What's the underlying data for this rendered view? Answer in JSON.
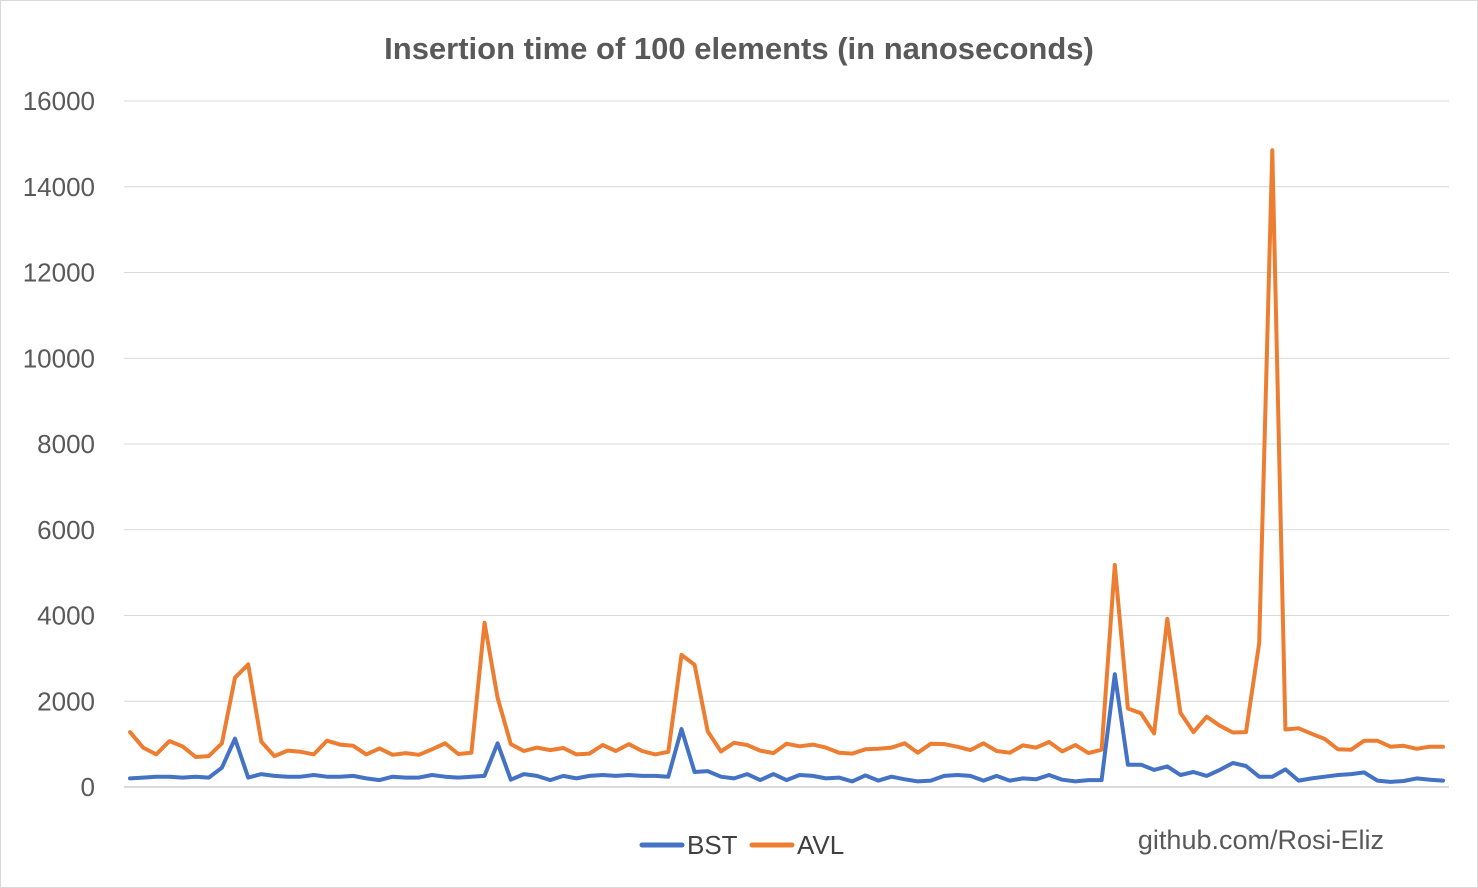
{
  "chart_data": {
    "type": "line",
    "title": "Insertion time of 100 elements (in nanoseconds)",
    "xlabel": "",
    "ylabel": "",
    "ylim": [
      0,
      16000
    ],
    "yticks": [
      0,
      2000,
      4000,
      6000,
      8000,
      10000,
      12000,
      14000,
      16000
    ],
    "grid": true,
    "legend_position": "bottom",
    "x": [
      1,
      2,
      3,
      4,
      5,
      6,
      7,
      8,
      9,
      10,
      11,
      12,
      13,
      14,
      15,
      16,
      17,
      18,
      19,
      20,
      21,
      22,
      23,
      24,
      25,
      26,
      27,
      28,
      29,
      30,
      31,
      32,
      33,
      34,
      35,
      36,
      37,
      38,
      39,
      40,
      41,
      42,
      43,
      44,
      45,
      46,
      47,
      48,
      49,
      50,
      51,
      52,
      53,
      54,
      55,
      56,
      57,
      58,
      59,
      60,
      61,
      62,
      63,
      64,
      65,
      66,
      67,
      68,
      69,
      70,
      71,
      72,
      73,
      74,
      75,
      76,
      77,
      78,
      79,
      80,
      81,
      82,
      83,
      84,
      85,
      86,
      87,
      88,
      89,
      90,
      91,
      92,
      93,
      94,
      95,
      96,
      97,
      98,
      99,
      100,
      101
    ],
    "series": [
      {
        "name": "BST",
        "color": "#4472c4",
        "values": [
          200,
          220,
          240,
          240,
          220,
          240,
          220,
          450,
          1130,
          220,
          300,
          260,
          240,
          240,
          280,
          240,
          240,
          260,
          200,
          160,
          240,
          220,
          220,
          280,
          240,
          220,
          240,
          260,
          1020,
          170,
          300,
          260,
          160,
          260,
          200,
          260,
          280,
          260,
          280,
          260,
          260,
          240,
          1350,
          350,
          370,
          240,
          200,
          300,
          160,
          300,
          160,
          280,
          260,
          200,
          220,
          130,
          270,
          150,
          240,
          180,
          130,
          150,
          260,
          280,
          260,
          150,
          260,
          150,
          200,
          180,
          280,
          170,
          130,
          160,
          160,
          2630,
          520,
          520,
          400,
          480,
          280,
          350,
          260,
          400,
          560,
          490,
          240,
          240,
          410,
          150,
          200,
          240,
          280,
          300,
          340,
          150,
          120,
          140,
          200,
          170,
          150
        ]
      },
      {
        "name": "AVL",
        "color": "#ed7d31",
        "values": [
          1280,
          920,
          760,
          1070,
          950,
          700,
          720,
          1020,
          2550,
          2860,
          1060,
          720,
          850,
          820,
          760,
          1080,
          990,
          960,
          760,
          900,
          750,
          790,
          750,
          880,
          1020,
          770,
          800,
          3830,
          2080,
          1000,
          840,
          920,
          860,
          910,
          760,
          780,
          980,
          840,
          1000,
          840,
          760,
          820,
          3080,
          2850,
          1300,
          830,
          1030,
          980,
          850,
          790,
          1010,
          950,
          990,
          920,
          800,
          780,
          880,
          890,
          920,
          1020,
          800,
          1010,
          1000,
          940,
          860,
          1020,
          840,
          800,
          970,
          920,
          1050,
          830,
          980,
          790,
          870,
          5180,
          1830,
          1720,
          1250,
          3920,
          1730,
          1280,
          1640,
          1430,
          1270,
          1280,
          3360,
          14850,
          1340,
          1370,
          1240,
          1120,
          880,
          870,
          1080,
          1080,
          940,
          960,
          890,
          940,
          940
        ]
      }
    ],
    "annotation": "github.com/Rosi-Eliz"
  }
}
